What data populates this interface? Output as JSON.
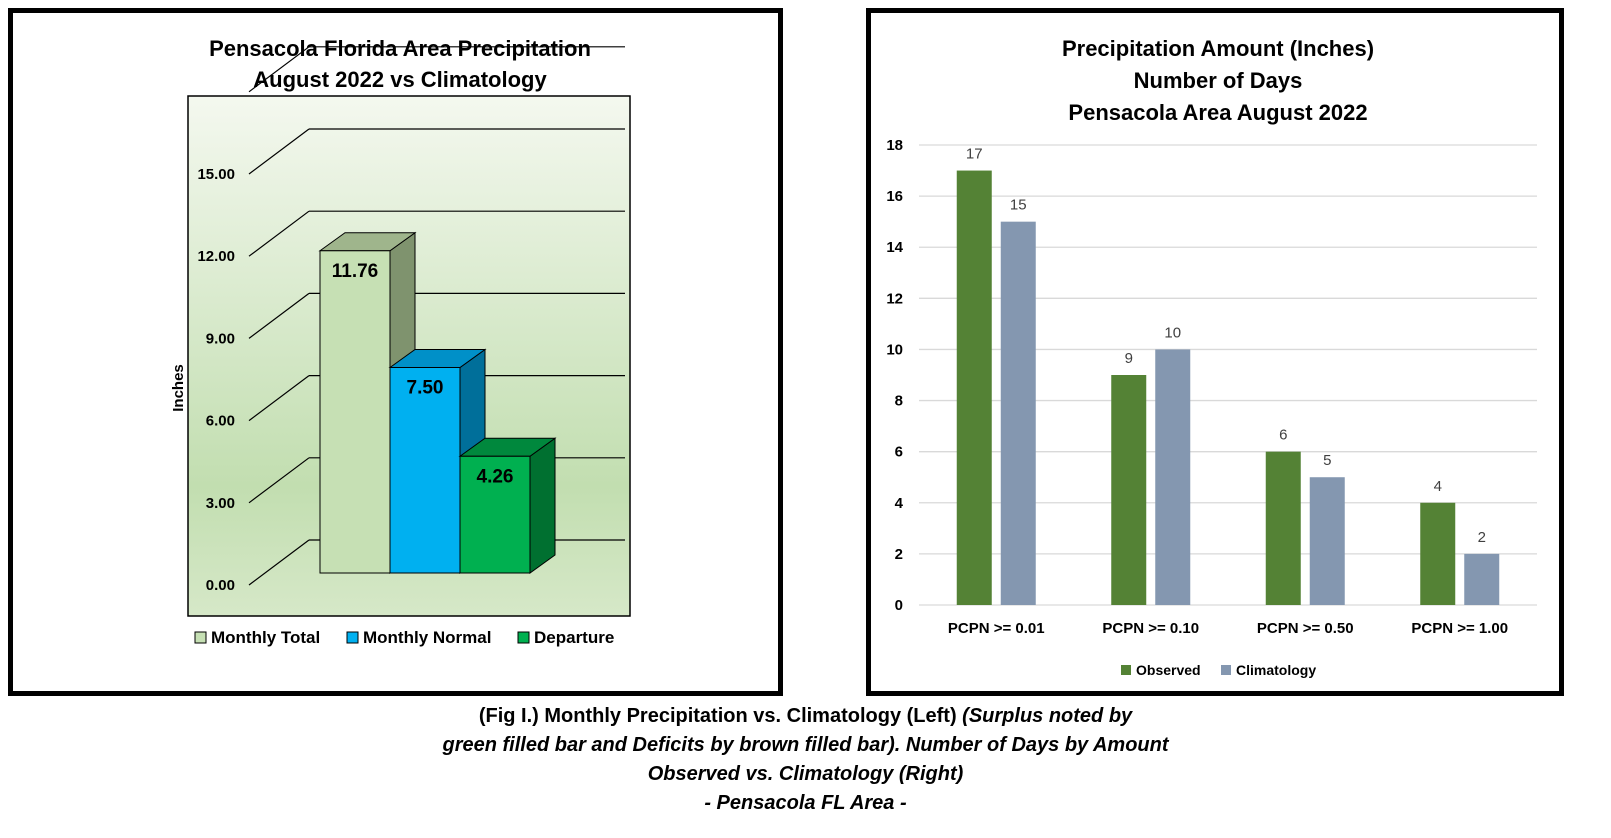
{
  "chart_data": [
    {
      "type": "bar",
      "style": "3d",
      "title_lines": [
        "Pensacola Florida Area Precipitation",
        "August 2022 vs Climatology"
      ],
      "ylabel": "Inches",
      "ylim": [
        0,
        15
      ],
      "yticks": [
        "0.00",
        "3.00",
        "6.00",
        "9.00",
        "12.00",
        "15.00"
      ],
      "grid": true,
      "legend_position": "bottom",
      "series": [
        {
          "name": "Monthly Total",
          "value": 11.76,
          "label": "11.76",
          "color": "#c6e0b4",
          "side_color": "#7f936e",
          "top_color": "#9fb58c"
        },
        {
          "name": "Monthly Normal",
          "value": 7.5,
          "label": "7.50",
          "color": "#00b0f0",
          "side_color": "#006f9a",
          "top_color": "#0090c8"
        },
        {
          "name": "Departure",
          "value": 4.26,
          "label": "4.26",
          "color": "#00b050",
          "side_color": "#007030",
          "top_color": "#00883d"
        }
      ]
    },
    {
      "type": "bar",
      "title_lines": [
        "Precipitation Amount (Inches)",
        "Number of Days",
        "Pensacola Area August 2022"
      ],
      "categories": [
        "PCPN >= 0.01",
        "PCPN >= 0.10",
        "PCPN >= 0.50",
        "PCPN >= 1.00"
      ],
      "ylim": [
        0,
        18
      ],
      "yticks": [
        "0",
        "2",
        "4",
        "6",
        "8",
        "10",
        "12",
        "14",
        "16",
        "18"
      ],
      "grid": true,
      "legend_position": "bottom",
      "series": [
        {
          "name": "Observed",
          "values": [
            17,
            9,
            6,
            4
          ],
          "color": "#548235"
        },
        {
          "name": "Climatology",
          "values": [
            15,
            10,
            5,
            2
          ],
          "color": "#8497b0"
        }
      ]
    }
  ],
  "caption": {
    "line1_regular": "(Fig I.) Monthly Precipitation vs. Climatology (Left) ",
    "line1_italic": "(Surplus noted by",
    "line2": "green filled bar and Deficits by brown filled bar). Number of Days by Amount",
    "line3": "Observed vs. Climatology (Right)",
    "line4": "- Pensacola FL Area -"
  }
}
